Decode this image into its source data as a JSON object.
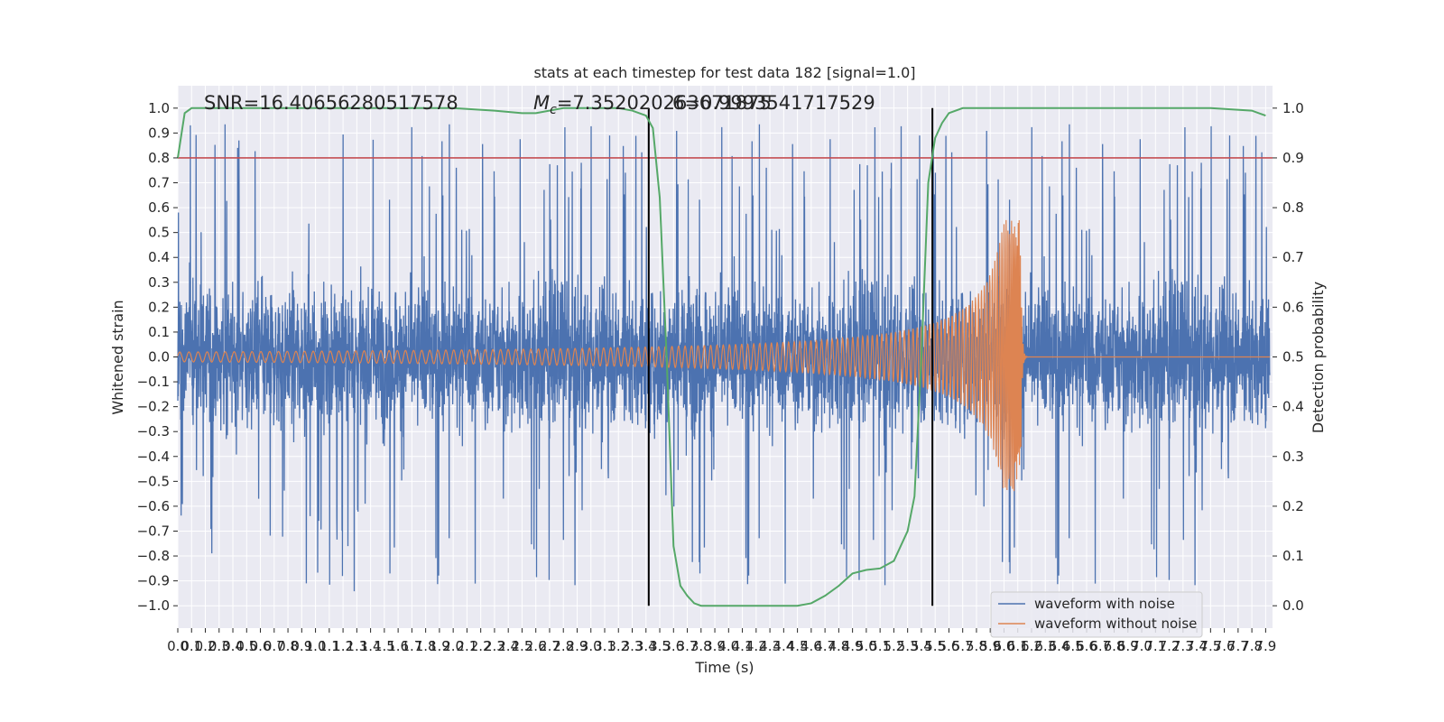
{
  "chart_data": {
    "type": "line",
    "title": "stats at each timestep for test data 182 [signal=1.0]",
    "xlabel": "Time (s)",
    "ylabel": "Whitened strain",
    "y2label": "Detection probability",
    "xlim": [
      0.0,
      7.95
    ],
    "ylim": [
      -1.09,
      1.09
    ],
    "y2lim": [
      -0.045,
      1.045
    ],
    "x_ticks": [
      0.0,
      0.1,
      0.2,
      0.3,
      0.4,
      0.5,
      0.6,
      0.7,
      0.8,
      0.9,
      1.0,
      1.1,
      1.2,
      1.3,
      1.4,
      1.5,
      1.6,
      1.7,
      1.8,
      1.9,
      2.0,
      2.1,
      2.2,
      2.3,
      2.4,
      2.5,
      2.6,
      2.7,
      2.8,
      2.9,
      3.0,
      3.1,
      3.2,
      3.3,
      3.4,
      3.5,
      3.6,
      3.7,
      3.8,
      3.9,
      4.0,
      4.1,
      4.2,
      4.3,
      4.4,
      4.5,
      4.6,
      4.7,
      4.8,
      4.9,
      5.0,
      5.1,
      5.2,
      5.3,
      5.4,
      5.5,
      5.6,
      5.7,
      5.8,
      5.9,
      6.0,
      6.1,
      6.2,
      6.3,
      6.4,
      6.5,
      6.6,
      6.7,
      6.8,
      6.9,
      7.0,
      7.1,
      7.2,
      7.3,
      7.4,
      7.5,
      7.6,
      7.7,
      7.8,
      7.9
    ],
    "y_ticks": [
      1.0,
      0.9,
      0.8,
      0.7,
      0.6,
      0.5,
      0.4,
      0.3,
      0.2,
      0.1,
      0.0,
      -0.1,
      -0.2,
      -0.3,
      -0.4,
      -0.5,
      -0.6,
      -0.7,
      -0.8,
      -0.9,
      -1.0
    ],
    "y2_ticks": [
      1.0,
      0.9,
      0.8,
      0.7,
      0.6,
      0.5,
      0.4,
      0.3,
      0.2,
      0.1,
      0.0
    ],
    "annotations": {
      "snr": "SNR=16.40656280517578",
      "mc": "=7.352020263671875",
      "mc_symbol": "M",
      "mc_subscript": "c",
      "overlap": "6=0.9993541717529"
    },
    "legend": {
      "position": "lower-right",
      "entries": [
        "waveform with noise",
        "waveform without noise"
      ]
    },
    "series": [
      {
        "name": "waveform with noise",
        "kind": "noise",
        "color": "#4c72b0",
        "amplitude_band": [
          -0.42,
          0.42
        ],
        "peak_range": [
          -0.99,
          1.0
        ]
      },
      {
        "name": "waveform without noise",
        "kind": "chirp",
        "color": "#dd8452",
        "start_amplitude": 0.02,
        "peak_amplitude": 0.55,
        "merger_time": 6.12
      },
      {
        "name": "Detection probability",
        "axis": "right",
        "color": "#55a868",
        "x": [
          0.0,
          0.05,
          0.1,
          0.2,
          0.5,
          1.0,
          1.5,
          2.0,
          2.3,
          2.5,
          2.6,
          2.8,
          3.0,
          3.2,
          3.3,
          3.4,
          3.45,
          3.5,
          3.55,
          3.6,
          3.65,
          3.7,
          3.75,
          3.8,
          3.9,
          4.0,
          4.2,
          4.5,
          4.6,
          4.7,
          4.8,
          4.9,
          5.0,
          5.1,
          5.2,
          5.3,
          5.35,
          5.4,
          5.45,
          5.5,
          5.55,
          5.6,
          5.7,
          5.8,
          6.0,
          6.5,
          7.0,
          7.5,
          7.8,
          7.9
        ],
        "values": [
          0.9,
          0.99,
          1.0,
          1.0,
          1.0,
          1.0,
          1.0,
          1.0,
          0.995,
          0.99,
          0.99,
          1.0,
          1.0,
          1.0,
          0.995,
          0.985,
          0.96,
          0.82,
          0.5,
          0.12,
          0.04,
          0.02,
          0.005,
          0.0,
          0.0,
          0.0,
          0.0,
          0.0,
          0.005,
          0.02,
          0.04,
          0.065,
          0.072,
          0.075,
          0.09,
          0.15,
          0.22,
          0.5,
          0.85,
          0.94,
          0.97,
          0.99,
          1.0,
          1.0,
          1.0,
          1.0,
          1.0,
          1.0,
          0.995,
          0.985
        ]
      }
    ],
    "hlines": [
      {
        "y": 0.8,
        "axis": "left",
        "color": "#c44e52"
      }
    ],
    "vlines": [
      {
        "x": 3.42,
        "ymin": -1.0,
        "ymax": 1.0,
        "color": "#000000"
      },
      {
        "x": 5.48,
        "ymin": -1.0,
        "ymax": 1.0,
        "color": "#000000"
      }
    ],
    "grid": true,
    "colors": {
      "axes_bg": "#eaeaf2",
      "grid": "#ffffff",
      "text": "#262626"
    }
  }
}
